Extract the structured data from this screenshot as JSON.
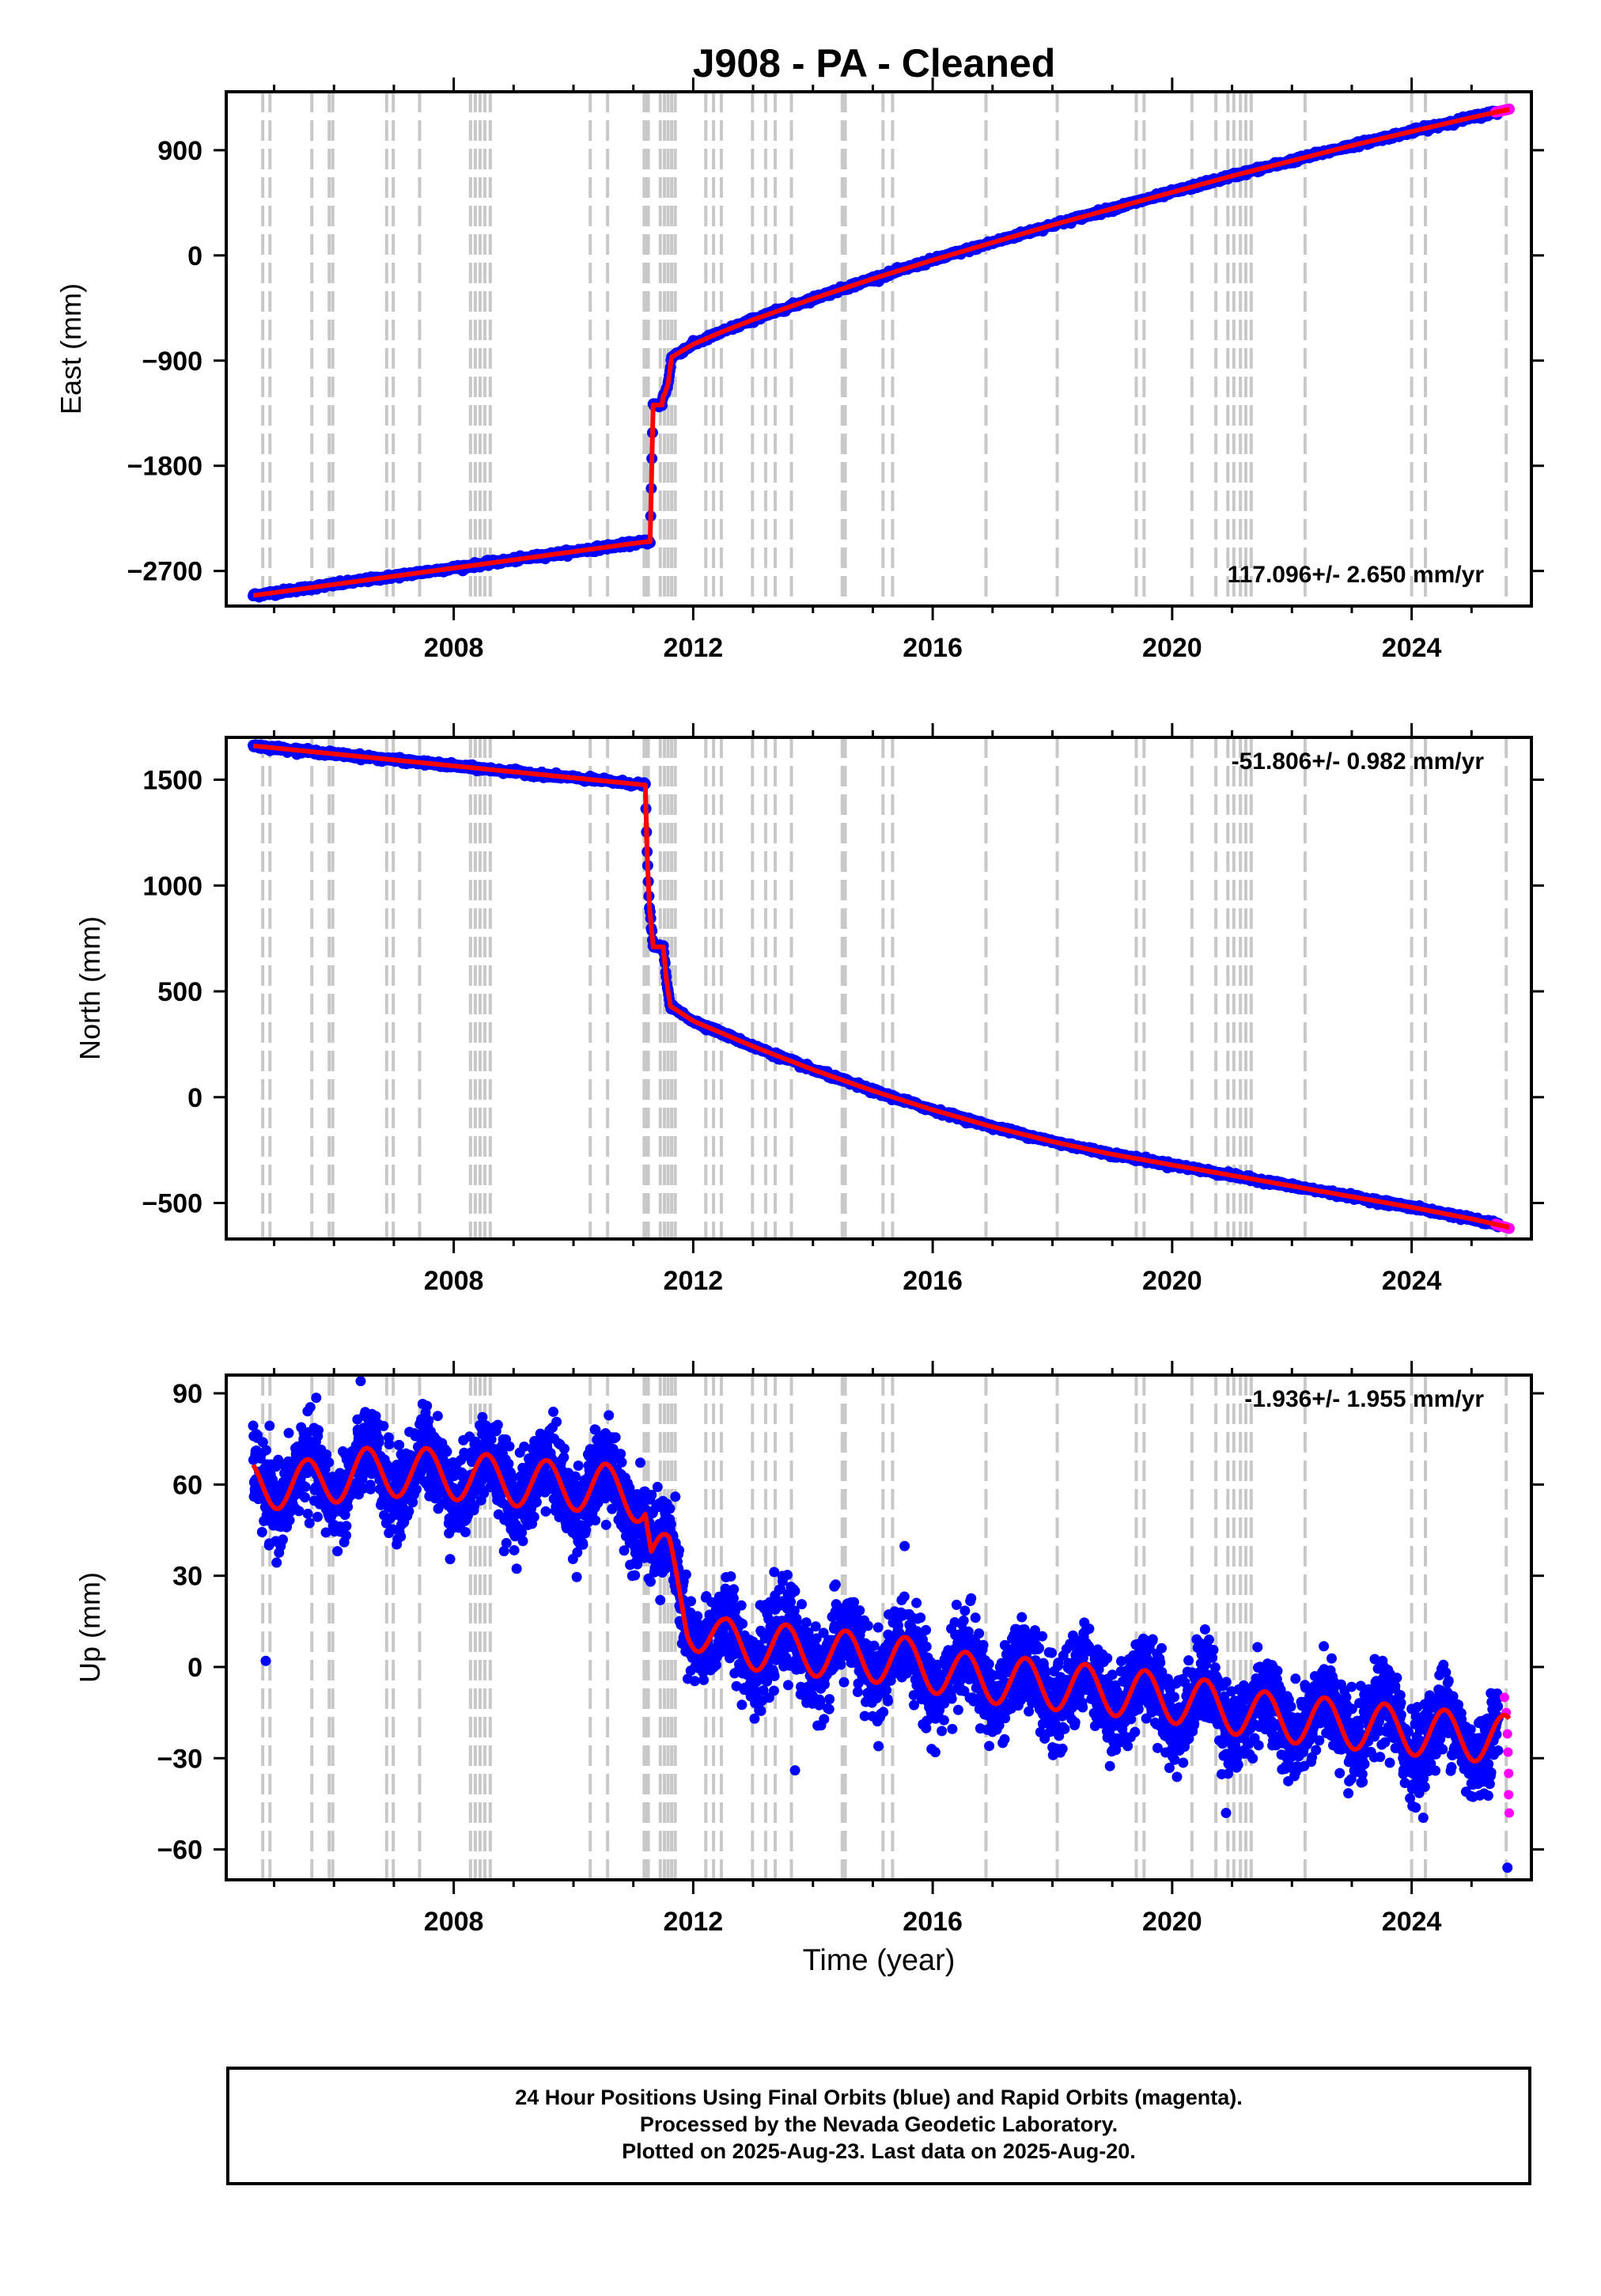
{
  "title": "J908  - PA - Cleaned",
  "footer": {
    "line1": "24 Hour Positions Using Final Orbits (blue) and Rapid Orbits (magenta).",
    "line2": "Processed by the Nevada Geodetic Laboratory.",
    "line3": "Plotted on 2025-Aug-23. Last data on 2025-Aug-20."
  },
  "colors": {
    "final": "#0000ff",
    "rapid": "#ff00ff",
    "model": "#ff0000",
    "steps": "#c8c8c8"
  },
  "x_axis": {
    "label": "Time (year)",
    "range": [
      2004.2,
      2026.0
    ],
    "ticks": [
      2008,
      2012,
      2016,
      2020,
      2024
    ]
  },
  "step_epochs": [
    2004.81,
    2004.93,
    2005.63,
    2005.92,
    2005.98,
    2006.88,
    2006.99,
    2007.43,
    2008.28,
    2008.36,
    2008.44,
    2008.52,
    2008.61,
    2010.28,
    2010.57,
    2011.18,
    2011.21,
    2011.25,
    2011.45,
    2011.52,
    2011.58,
    2011.64,
    2011.7,
    2012.21,
    2012.34,
    2012.47,
    2012.99,
    2013.21,
    2013.37,
    2013.64,
    2014.49,
    2014.54,
    2015.17,
    2015.33,
    2016.89,
    2018.08,
    2019.4,
    2019.53,
    2020.33,
    2020.73,
    2020.93,
    2021.03,
    2021.14,
    2021.23,
    2021.32,
    2022.22,
    2024.0,
    2024.23,
    2025.58
  ],
  "chart_data": [
    {
      "type": "scatter",
      "panel": "east",
      "ylabel": "East (mm)",
      "ylim": [
        -3000,
        1400
      ],
      "yticks": [
        -2700,
        -1800,
        -900,
        0,
        900
      ],
      "rate_label": "117.096+/- 2.650 mm/yr",
      "model": [
        [
          2004.65,
          -2910
        ],
        [
          2011.2,
          -2450
        ],
        [
          2011.28,
          -2450
        ],
        [
          2011.33,
          -1280
        ],
        [
          2011.48,
          -1280
        ],
        [
          2011.5,
          -1200
        ],
        [
          2011.53,
          -1180
        ],
        [
          2011.58,
          -1100
        ],
        [
          2011.64,
          -870
        ],
        [
          2012.0,
          -760
        ],
        [
          2012.5,
          -650
        ],
        [
          2013.0,
          -550
        ],
        [
          2014.0,
          -370
        ],
        [
          2015.0,
          -200
        ],
        [
          2016.0,
          -40
        ],
        [
          2017.0,
          110
        ],
        [
          2018.0,
          260
        ],
        [
          2019.0,
          400
        ],
        [
          2020.0,
          540
        ],
        [
          2021.0,
          680
        ],
        [
          2022.0,
          810
        ],
        [
          2023.0,
          940
        ],
        [
          2024.0,
          1060
        ],
        [
          2025.0,
          1180
        ],
        [
          2025.63,
          1250
        ]
      ],
      "rapid_segment": [
        [
          2025.4,
          1225
        ],
        [
          2025.63,
          1252
        ]
      ],
      "final_segment_end": 2025.45
    },
    {
      "type": "scatter",
      "panel": "north",
      "ylabel": "North (mm)",
      "ylim": [
        -670,
        1700
      ],
      "yticks": [
        -500,
        0,
        500,
        1000,
        1500
      ],
      "rate_label": "-51.806+/- 0.982 mm/yr",
      "model": [
        [
          2004.65,
          1660
        ],
        [
          2011.2,
          1475
        ],
        [
          2011.23,
          1150
        ],
        [
          2011.27,
          900
        ],
        [
          2011.33,
          710
        ],
        [
          2011.5,
          710
        ],
        [
          2011.55,
          560
        ],
        [
          2011.62,
          430
        ],
        [
          2012.0,
          360
        ],
        [
          2012.5,
          300
        ],
        [
          2013.0,
          240
        ],
        [
          2014.0,
          130
        ],
        [
          2015.0,
          30
        ],
        [
          2016.0,
          -60
        ],
        [
          2017.0,
          -140
        ],
        [
          2018.0,
          -210
        ],
        [
          2019.0,
          -270
        ],
        [
          2020.0,
          -320
        ],
        [
          2021.0,
          -370
        ],
        [
          2022.0,
          -420
        ],
        [
          2023.0,
          -470
        ],
        [
          2024.0,
          -520
        ],
        [
          2025.0,
          -575
        ],
        [
          2025.63,
          -615
        ]
      ],
      "rapid_segment": [
        [
          2025.4,
          -600
        ],
        [
          2025.63,
          -620
        ]
      ],
      "final_segment_end": 2025.45
    },
    {
      "type": "scatter",
      "panel": "up",
      "ylabel": "Up (mm)",
      "ylim": [
        -70,
        96
      ],
      "yticks": [
        -60,
        -30,
        0,
        30,
        60,
        90
      ],
      "rate_label": "-1.936+/- 1.955 mm/yr",
      "seasonal_amplitude_mm": 8,
      "model_base": [
        [
          2004.65,
          60
        ],
        [
          2005.5,
          60
        ],
        [
          2006.5,
          64
        ],
        [
          2007.5,
          64
        ],
        [
          2008.5,
          62
        ],
        [
          2009.5,
          60
        ],
        [
          2010.5,
          59
        ],
        [
          2011.2,
          55
        ],
        [
          2011.3,
          38
        ],
        [
          2011.6,
          35
        ],
        [
          2011.9,
          15
        ],
        [
          2012.5,
          8
        ],
        [
          2013.5,
          6
        ],
        [
          2014.5,
          4
        ],
        [
          2015.5,
          2
        ],
        [
          2016.5,
          -3
        ],
        [
          2017.5,
          -5
        ],
        [
          2018.5,
          -7
        ],
        [
          2019.5,
          -9
        ],
        [
          2020.5,
          -12
        ],
        [
          2021.5,
          -16
        ],
        [
          2022.5,
          -18
        ],
        [
          2023.5,
          -20
        ],
        [
          2024.5,
          -22
        ],
        [
          2025.63,
          -24
        ]
      ],
      "scatter_sigma_mm": 7,
      "outliers": [
        [
          2004.86,
          2
        ],
        [
          2011.45,
          22
        ],
        [
          2013.7,
          -34
        ],
        [
          2020.9,
          -48
        ],
        [
          2025.6,
          -66
        ]
      ],
      "rapid_points": [
        [
          2025.55,
          -10
        ],
        [
          2025.58,
          -15
        ],
        [
          2025.6,
          -22
        ],
        [
          2025.61,
          -28
        ],
        [
          2025.62,
          -35
        ],
        [
          2025.62,
          -42
        ],
        [
          2025.63,
          -48
        ]
      ],
      "final_segment_end": 2025.45
    }
  ]
}
